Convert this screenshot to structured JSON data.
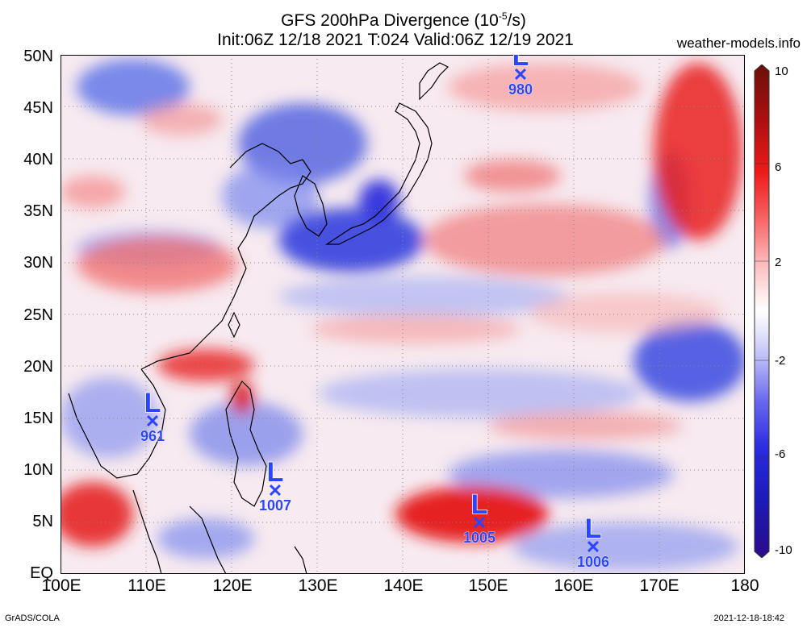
{
  "title": {
    "line1": "GFS 200hPa Divergence (10",
    "exp": "-5",
    "unit": "/s)",
    "line2": "Init:06Z 12/18 2021 T:024 Valid:06Z 12/19 2021"
  },
  "site": "weather-models.info",
  "footer": {
    "left": "GrADS/COLA",
    "right": "2021-12-18-18:42"
  },
  "axes": {
    "lat_labels": [
      "50N",
      "45N",
      "40N",
      "35N",
      "30N",
      "25N",
      "20N",
      "15N",
      "10N",
      "5N",
      "EQ"
    ],
    "lon_labels": [
      "100E",
      "110E",
      "120E",
      "130E",
      "140E",
      "150E",
      "160E",
      "170E",
      "180"
    ]
  },
  "colorbar": {
    "labels": [
      "10",
      "6",
      "2",
      "-2",
      "-6",
      "-10"
    ],
    "colors": [
      "#6a1008",
      "#b01010",
      "#ee1b1b",
      "#f76a6a",
      "#fbb8b8",
      "#fde6e6",
      "#ffffff",
      "#e6e6fb",
      "#b8b8f6",
      "#6a6aef",
      "#2a2ae0",
      "#1b1bb8",
      "#2c0a8a"
    ]
  },
  "lows": [
    {
      "pressure": "980"
    },
    {
      "pressure": "961"
    },
    {
      "pressure": "1007"
    },
    {
      "pressure": "1005"
    },
    {
      "pressure": "1006"
    }
  ]
}
